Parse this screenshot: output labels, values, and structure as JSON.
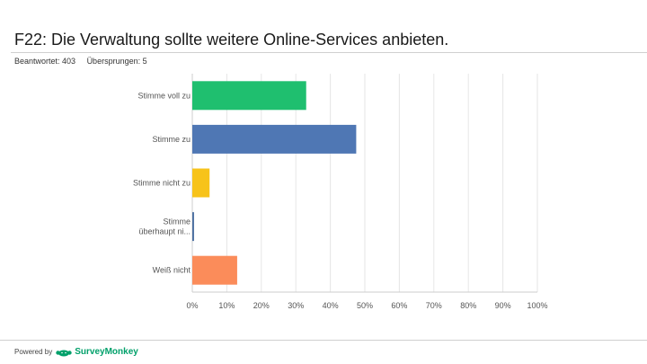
{
  "header": {
    "title": "F22: Die Verwaltung sollte weitere Online-Services anbieten.",
    "answered": "Beantwortet: 403",
    "skipped": "Übersprungen: 5"
  },
  "footer": {
    "powered_by": "Powered by",
    "brand": "SurveyMonkey"
  },
  "chart_data": {
    "type": "bar",
    "orientation": "horizontal",
    "categories": [
      "Stimme voll zu",
      "Stimme zu",
      "Stimme nicht zu",
      "Stimme überhaupt ni...",
      "Weiß nicht"
    ],
    "values": [
      33,
      47.5,
      5,
      0.5,
      13
    ],
    "unit": "%",
    "xlim": [
      0,
      100
    ],
    "xticks": [
      "0%",
      "10%",
      "20%",
      "30%",
      "40%",
      "50%",
      "60%",
      "70%",
      "80%",
      "90%",
      "100%"
    ],
    "grid": true,
    "colors": [
      "#1fbf6f",
      "#4f77b4",
      "#f7c31a",
      "#4a6ea0",
      "#fb8c5a"
    ]
  }
}
